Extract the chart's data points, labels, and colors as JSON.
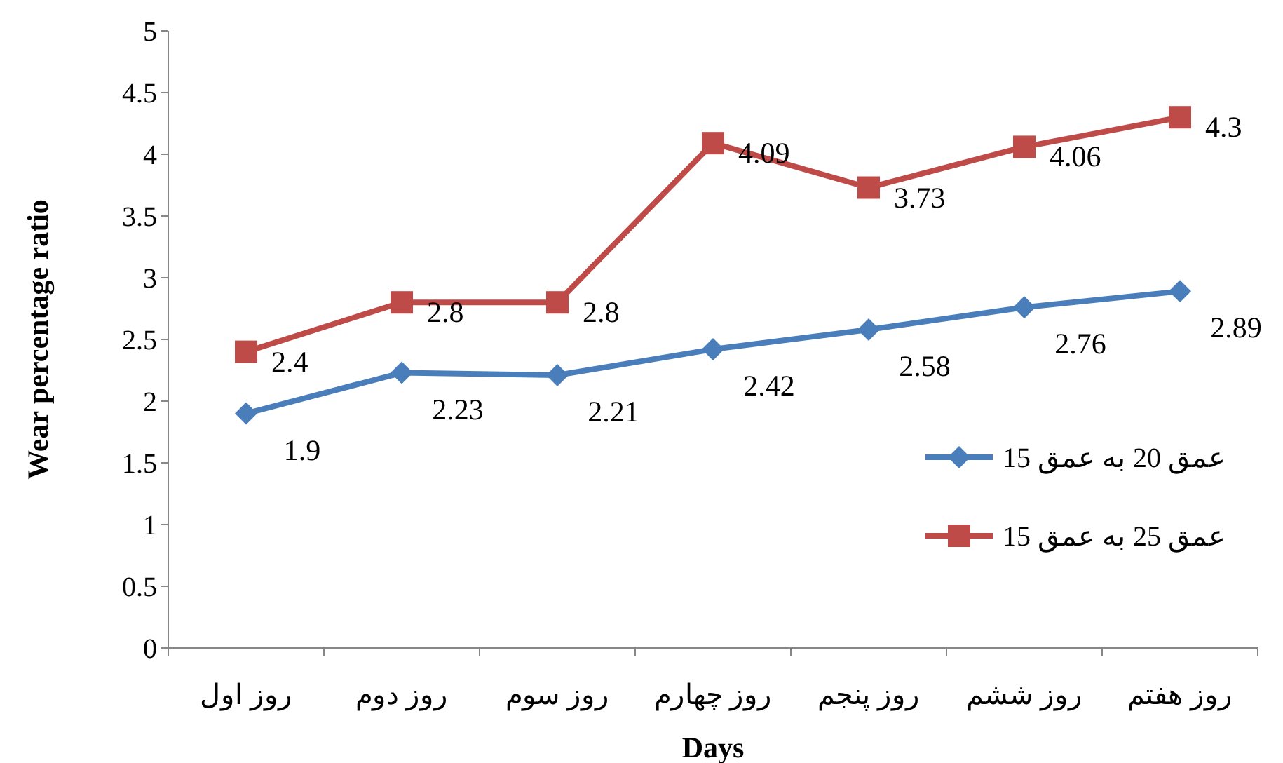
{
  "chart_data": {
    "type": "line",
    "xlabel": "Days",
    "ylabel": "Wear percentage ratio",
    "categories": [
      "روز اول",
      "روز دوم",
      "روز سوم",
      "روز چهارم",
      "روز پنجم",
      "روز ششم",
      "روز هفتم"
    ],
    "series": [
      {
        "name": "عمق 20 به عمق 15",
        "color": "#4a7ebb",
        "marker": "diamond",
        "values": [
          1.9,
          2.23,
          2.21,
          2.42,
          2.58,
          2.76,
          2.89
        ]
      },
      {
        "name": "عمق 25 به عمق 15",
        "color": "#be4b48",
        "marker": "square",
        "values": [
          2.4,
          2.8,
          2.8,
          4.09,
          3.73,
          4.06,
          4.3
        ]
      }
    ],
    "ylim": [
      0,
      5
    ],
    "yticks": [
      0,
      0.5,
      1,
      1.5,
      2,
      2.5,
      3,
      3.5,
      4,
      4.5,
      5
    ],
    "data_labels": true,
    "legend": "right",
    "grid": false,
    "line_style": "solid"
  }
}
